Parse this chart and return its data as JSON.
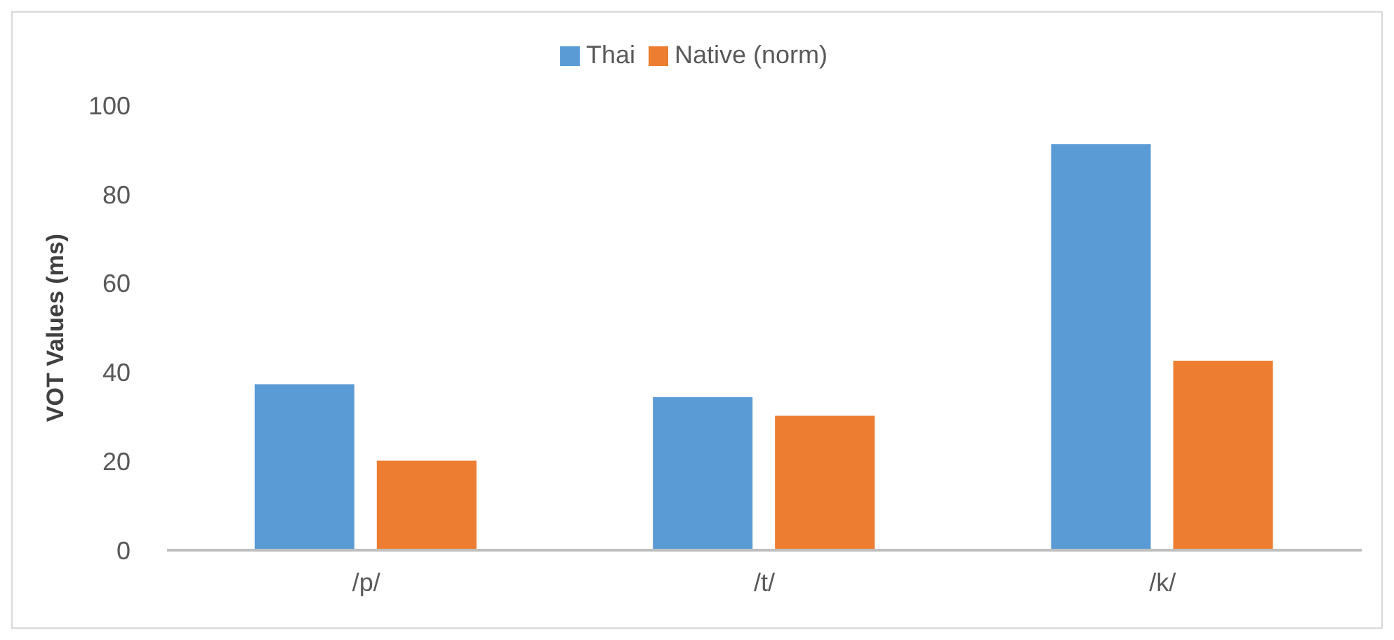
{
  "chart_data": {
    "type": "bar",
    "ylabel": "VOT Values (ms)",
    "categories": [
      "/p/",
      "/t/",
      "/k/"
    ],
    "series": [
      {
        "name": "Thai",
        "color": "#5b9bd5",
        "values": [
          37.3,
          34.4,
          91.3
        ]
      },
      {
        "name": "Native (norm)",
        "color": "#ed7d31",
        "values": [
          20.1,
          30.2,
          42.6
        ]
      }
    ],
    "ylim": [
      0,
      100
    ],
    "yticks": [
      0,
      20,
      40,
      60,
      80,
      100
    ],
    "grid": false,
    "legend": "top"
  }
}
